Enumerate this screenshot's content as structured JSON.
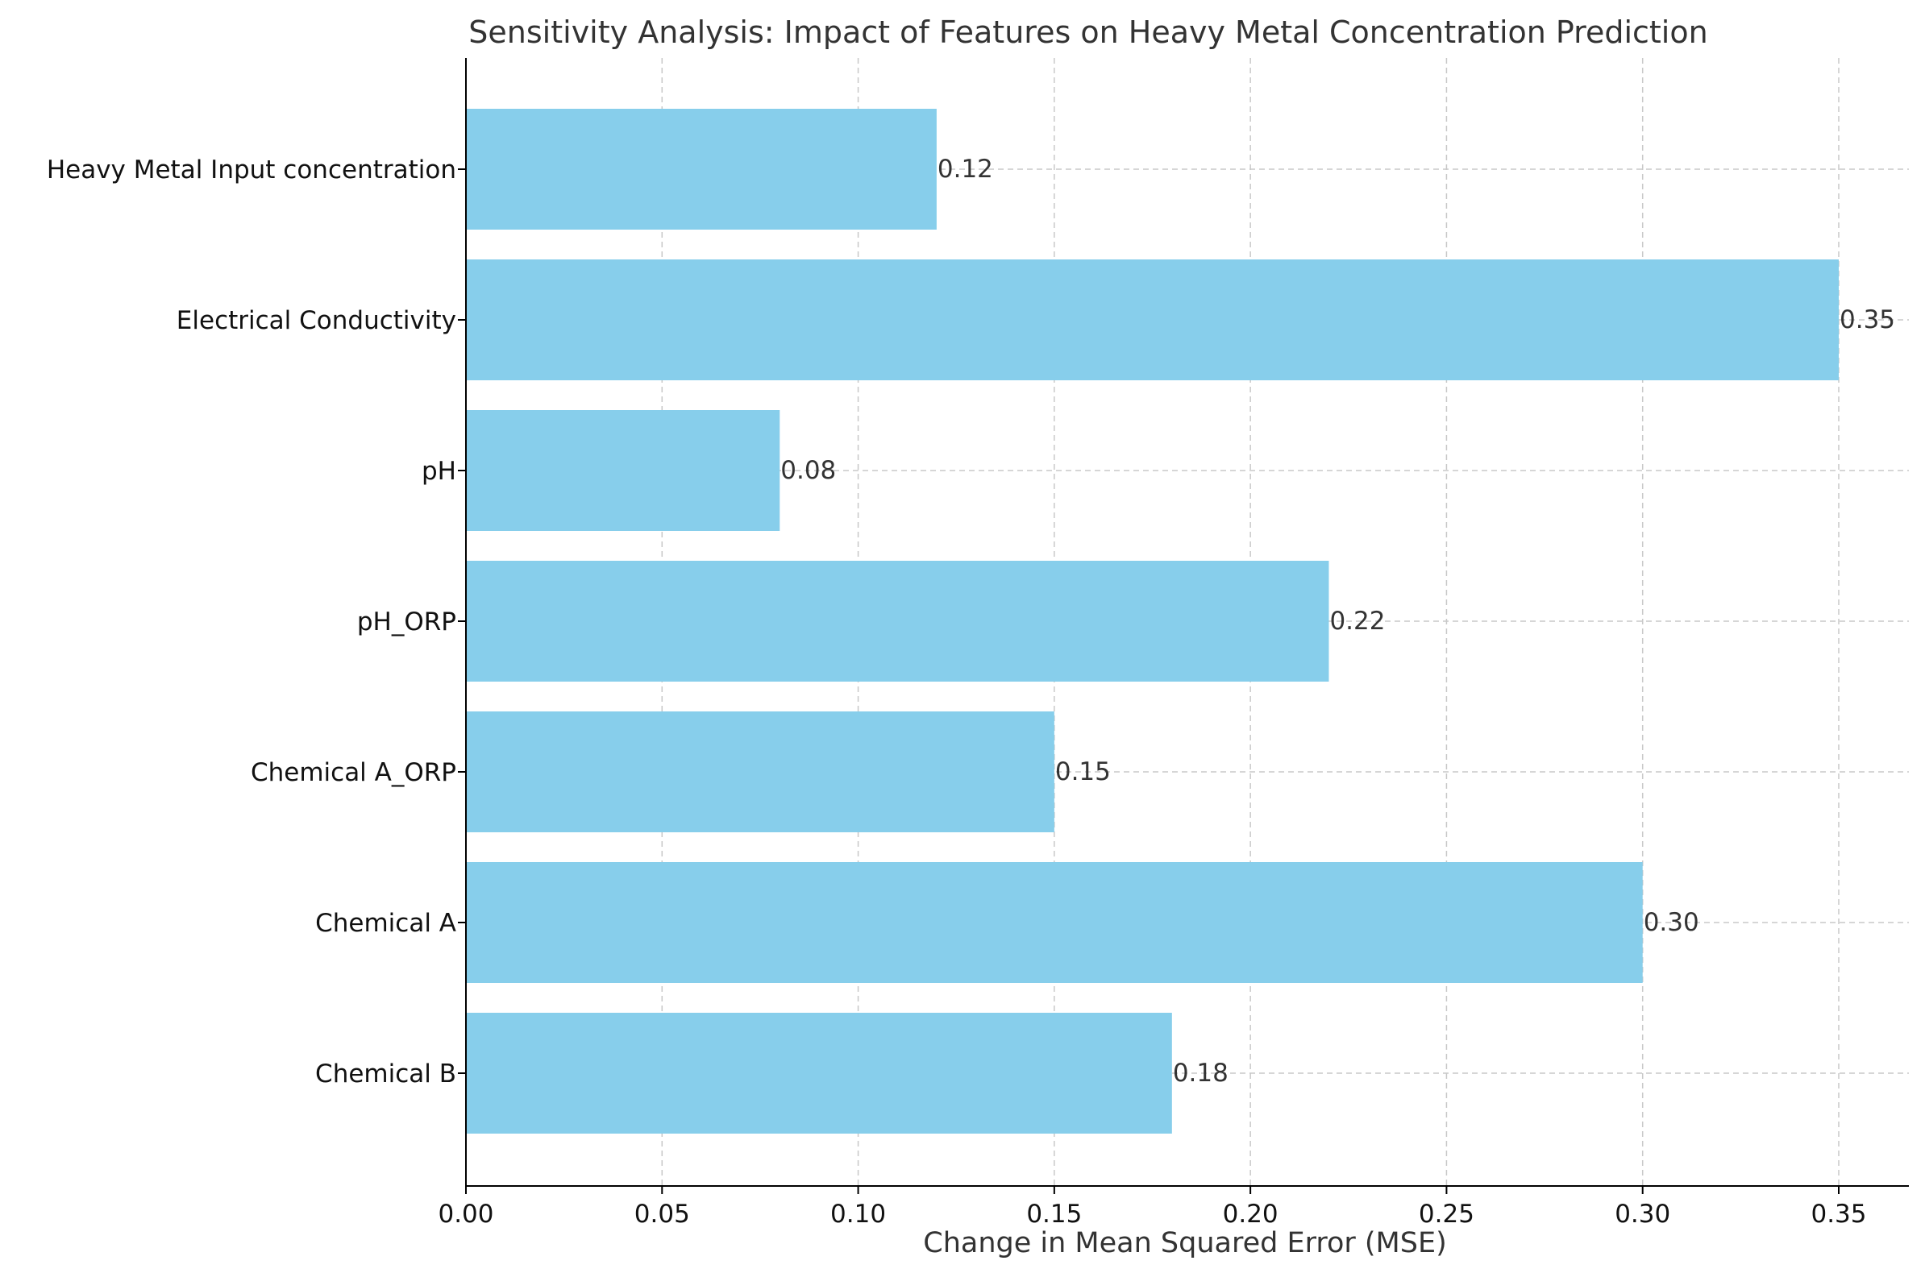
{
  "chart_data": {
    "type": "bar",
    "orientation": "horizontal",
    "title": "Sensitivity Analysis: Impact of Features on Heavy Metal Concentration Prediction",
    "xlabel": "Change in Mean Squared Error (MSE)",
    "ylabel": "",
    "categories": [
      "Chemical B",
      "Chemical A",
      "Chemical A_ORP",
      "pH_ORP",
      "pH",
      "Electrical Conductivity",
      "Heavy Metal Input concentration"
    ],
    "values": [
      0.18,
      0.3,
      0.15,
      0.22,
      0.08,
      0.35,
      0.12
    ],
    "data_labels": [
      "0.18",
      "0.30",
      "0.15",
      "0.22",
      "0.08",
      "0.35",
      "0.12"
    ],
    "xlim": [
      0,
      0.3675
    ],
    "xticks": [
      0.0,
      0.05,
      0.1,
      0.15,
      0.2,
      0.25,
      0.3,
      0.35
    ],
    "xtick_labels": [
      "0.00",
      "0.05",
      "0.10",
      "0.15",
      "0.20",
      "0.25",
      "0.30",
      "0.35"
    ],
    "grid": true,
    "bar_color": "#87CEEB",
    "grid_color": "#c8c8c8"
  }
}
